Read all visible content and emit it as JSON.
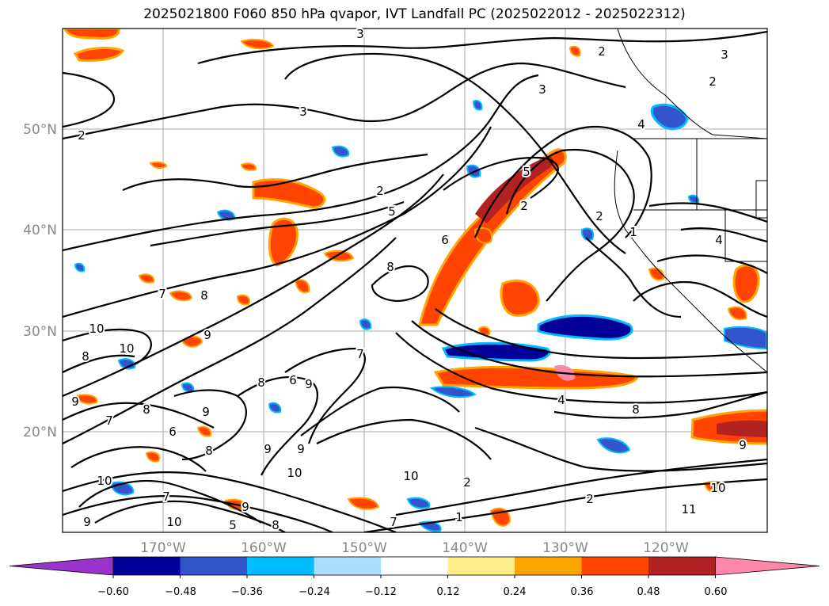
{
  "title": "2025021800 F060 850 hPa qvapor, IVT Landfall PC (2025022012 - 2025022312)",
  "map": {
    "lat_labels": [
      "50°N",
      "40°N",
      "30°N",
      "20°N"
    ],
    "lon_labels": [
      "170°W",
      "160°W",
      "150°W",
      "140°W",
      "130°W",
      "120°W"
    ],
    "contour_labels": [
      "3",
      "2",
      "3",
      "2",
      "2",
      "3",
      "5",
      "2",
      "5",
      "3",
      "2",
      "2",
      "6",
      "1",
      "4",
      "8",
      "7",
      "8",
      "10",
      "10",
      "9",
      "9",
      "8",
      "7",
      "4",
      "8",
      "9",
      "8",
      "6",
      "9",
      "9",
      "7",
      "6",
      "8",
      "9",
      "10",
      "10",
      "7",
      "9",
      "10",
      "5",
      "8",
      "9",
      "10",
      "7",
      "1",
      "2",
      "2",
      "4",
      "8",
      "9",
      "10",
      "11"
    ],
    "colors": {
      "neg_strong": "#9933cc",
      "neg_1": "#000099",
      "neg_2": "#3355cc",
      "neg_3": "#00bbff",
      "neg_4": "#aaddff",
      "pos_1": "#ffee99",
      "pos_2": "#ffaa00",
      "pos_3": "#ff4400",
      "pos_4": "#b22222",
      "pos_strong": "#ff88aa"
    }
  },
  "colorbar": {
    "ticks": [
      "−0.60",
      "−0.48",
      "−0.36",
      "−0.24",
      "−0.12",
      "0.12",
      "0.24",
      "0.36",
      "0.48",
      "0.60"
    ],
    "colors": [
      "#9933cc",
      "#000099",
      "#3355cc",
      "#00bbff",
      "#aaddff",
      "#ffffff",
      "#ffee88",
      "#ffa500",
      "#ff4400",
      "#b22222",
      "#ff88aa"
    ]
  }
}
